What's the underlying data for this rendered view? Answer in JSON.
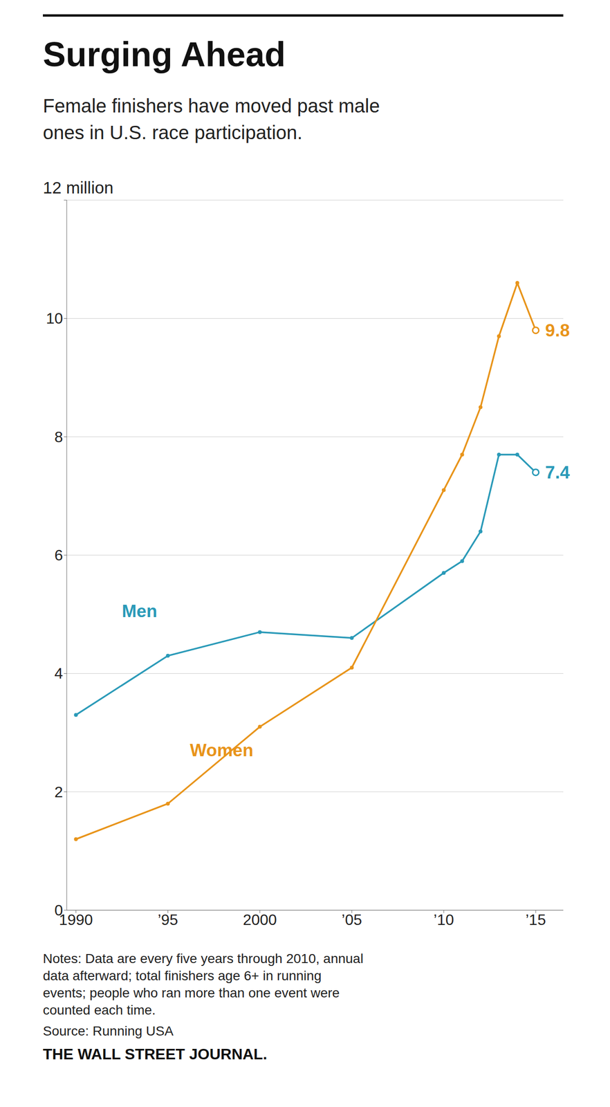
{
  "chart_data": {
    "type": "line",
    "title": "Surging Ahead",
    "subtitle": "Female finishers have moved past male\nones in U.S. race participation.",
    "x": [
      1990,
      1995,
      2000,
      2005,
      2010,
      2011,
      2012,
      2013,
      2014,
      2015
    ],
    "series": [
      {
        "name": "Men",
        "color": "#2a9ab8",
        "marker": "circle",
        "values": [
          3.3,
          4.3,
          4.7,
          4.6,
          5.7,
          5.9,
          6.4,
          7.7,
          7.7,
          7.4
        ],
        "value_labels": [
          null,
          null,
          null,
          null,
          null,
          null,
          null,
          null,
          null,
          "7.4"
        ]
      },
      {
        "name": "Women",
        "color": "#e8941a",
        "marker": "circle",
        "values": [
          1.2,
          1.8,
          3.1,
          4.1,
          7.1,
          7.7,
          8.5,
          9.7,
          10.6,
          9.8
        ],
        "value_labels": [
          null,
          null,
          null,
          null,
          null,
          null,
          null,
          null,
          null,
          "9.8"
        ]
      }
    ],
    "xlim": [
      1989.5,
      2016.5
    ],
    "xticks": [
      1990,
      {
        "value": 1995,
        "label": "’95"
      },
      2000,
      {
        "value": 2005,
        "label": "’05"
      },
      {
        "value": 2010,
        "label": "’10"
      },
      {
        "value": 2015,
        "label": "’15"
      }
    ],
    "ylim": [
      0,
      12
    ],
    "yticks": [
      0,
      2,
      4,
      6,
      8,
      10,
      {
        "value": 12,
        "label": "12 million"
      }
    ],
    "grid": true,
    "notes": [
      "Notes: Data are every five years through 2010, annual",
      "data afterward; total finishers age 6+ in running",
      "events; people who ran more than one event were",
      "counted each time."
    ],
    "source": "Source: Running USA",
    "footer": "THE WALL STREET JOURNAL."
  }
}
